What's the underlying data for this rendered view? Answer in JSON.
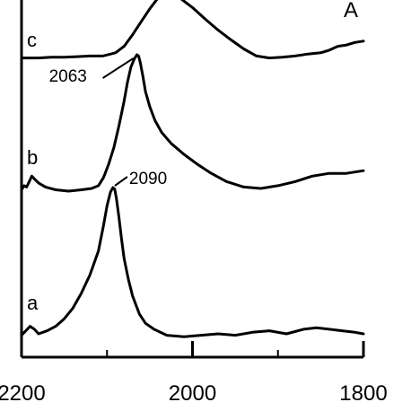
{
  "chart_data": {
    "type": "line",
    "panel_label": "A",
    "x_axis": {
      "ticks": [
        2200,
        2000,
        1800
      ],
      "tick_labels": [
        "2200",
        "2000",
        "1800"
      ],
      "range": [
        2200,
        1800
      ],
      "reversed": true
    },
    "y_axis": {
      "visible_ticks": false
    },
    "grid": false,
    "legend": "none",
    "series": [
      {
        "label": "a",
        "peak_label": "2090",
        "peak_x": 2090,
        "x": [
          2200,
          2195,
          2190,
          2185,
          2180,
          2170,
          2160,
          2150,
          2140,
          2130,
          2120,
          2110,
          2104,
          2100,
          2096,
          2093,
          2091,
          2089,
          2086,
          2083,
          2080,
          2075,
          2070,
          2062,
          2055,
          2045,
          2030,
          2010,
          1990,
          1970,
          1950,
          1930,
          1910,
          1890,
          1870,
          1855,
          1840,
          1825,
          1810,
          1800
        ],
        "y": [
          0.02,
          0.05,
          0.08,
          0.06,
          0.03,
          0.05,
          0.08,
          0.13,
          0.2,
          0.3,
          0.42,
          0.58,
          0.75,
          0.88,
          0.97,
          1.0,
          0.99,
          0.93,
          0.8,
          0.66,
          0.53,
          0.39,
          0.28,
          0.16,
          0.1,
          0.06,
          0.02,
          0.01,
          0.02,
          0.03,
          0.02,
          0.04,
          0.05,
          0.03,
          0.06,
          0.07,
          0.06,
          0.05,
          0.04,
          0.03
        ]
      },
      {
        "label": "b",
        "peak_label": "2063",
        "peak_x": 2063,
        "x": [
          2200,
          2197,
          2194,
          2191,
          2188,
          2185,
          2180,
          2172,
          2160,
          2145,
          2130,
          2118,
          2110,
          2104,
          2098,
          2092,
          2086,
          2080,
          2076,
          2072,
          2068,
          2065,
          2063,
          2061,
          2058,
          2055,
          2050,
          2044,
          2036,
          2025,
          2010,
          1995,
          1978,
          1960,
          1940,
          1920,
          1900,
          1880,
          1860,
          1840,
          1820,
          1800
        ],
        "y": [
          0.01,
          0.04,
          0.03,
          0.07,
          0.11,
          0.09,
          0.06,
          0.03,
          0.01,
          0.0,
          0.01,
          0.02,
          0.04,
          0.1,
          0.2,
          0.32,
          0.48,
          0.66,
          0.8,
          0.91,
          0.97,
          1.0,
          0.99,
          0.94,
          0.84,
          0.73,
          0.62,
          0.52,
          0.43,
          0.35,
          0.27,
          0.2,
          0.13,
          0.07,
          0.03,
          0.02,
          0.04,
          0.07,
          0.11,
          0.13,
          0.13,
          0.15
        ]
      },
      {
        "label": "c",
        "x": [
          2200,
          2190,
          2180,
          2165,
          2150,
          2135,
          2120,
          2105,
          2090,
          2080,
          2070,
          2060,
          2050,
          2042,
          2035,
          2025,
          2015,
          2000,
          1985,
          1970,
          1955,
          1940,
          1925,
          1910,
          1895,
          1880,
          1865,
          1850,
          1840,
          1830,
          1820,
          1810,
          1800
        ],
        "y": [
          0.02,
          0.02,
          0.02,
          0.03,
          0.03,
          0.04,
          0.05,
          0.05,
          0.1,
          0.2,
          0.38,
          0.58,
          0.78,
          0.92,
          1.0,
          1.0,
          0.95,
          0.8,
          0.62,
          0.45,
          0.3,
          0.16,
          0.05,
          0.02,
          0.03,
          0.05,
          0.08,
          0.1,
          0.14,
          0.2,
          0.22,
          0.26,
          0.28
        ]
      }
    ]
  }
}
